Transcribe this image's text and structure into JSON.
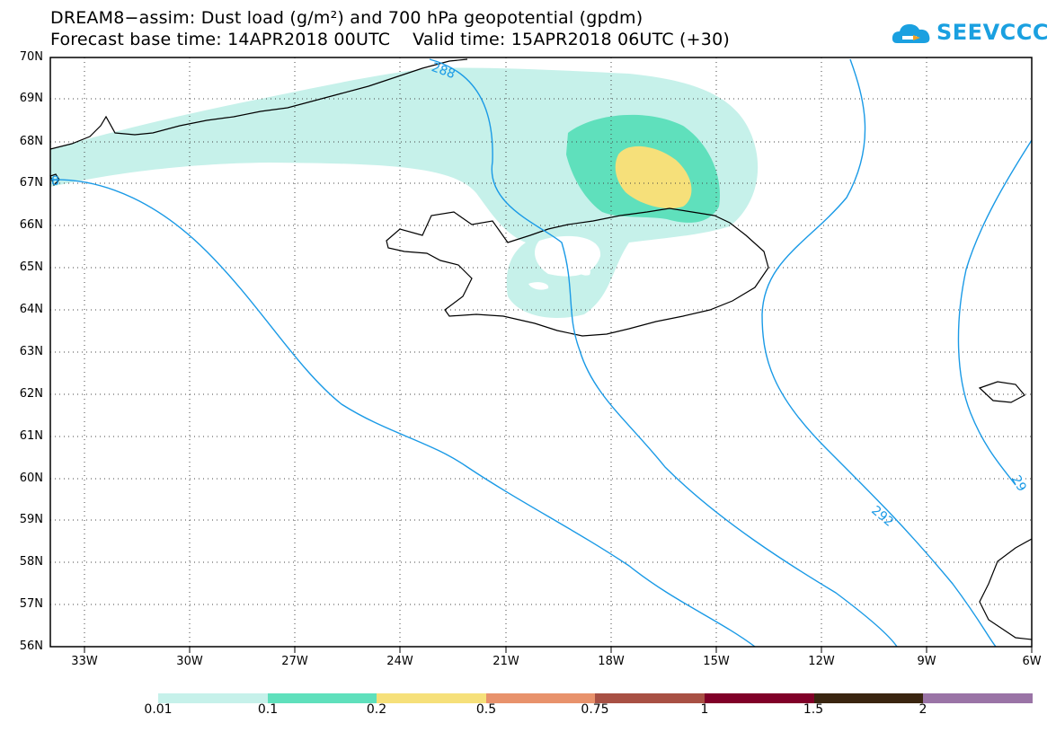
{
  "title": {
    "line1": "DREAM8−assim: Dust load (g/m²) and 700 hPa geopotential (gpdm)",
    "line2": "Forecast base time: 14APR2018 00UTC    Valid time: 15APR2018 06UTC (+30)"
  },
  "logo": {
    "text": "SEEVCCC",
    "icon": "cloud-icon",
    "color": "#1aa0e0"
  },
  "map": {
    "lat_labels": [
      "70N",
      "69N",
      "68N",
      "67N",
      "66N",
      "65N",
      "64N",
      "63N",
      "62N",
      "61N",
      "60N",
      "59N",
      "58N",
      "57N",
      "56N"
    ],
    "lon_labels": [
      "33W",
      "30W",
      "27W",
      "24W",
      "21W",
      "18W",
      "15W",
      "12W",
      "9W",
      "6W"
    ],
    "contour_color": "#1a9ae6",
    "contour_labels": [
      "288",
      "292",
      "29",
      "8"
    ]
  },
  "colorbar": {
    "labels": [
      "0.01",
      "0.1",
      "0.2",
      "0.5",
      "0.75",
      "1",
      "1.5",
      "2"
    ],
    "colors": [
      "#c6f1ea",
      "#5fe0bc",
      "#f6e07a",
      "#e8926c",
      "#a85044",
      "#800028",
      "#3a2510",
      "#9a74a6"
    ]
  }
}
